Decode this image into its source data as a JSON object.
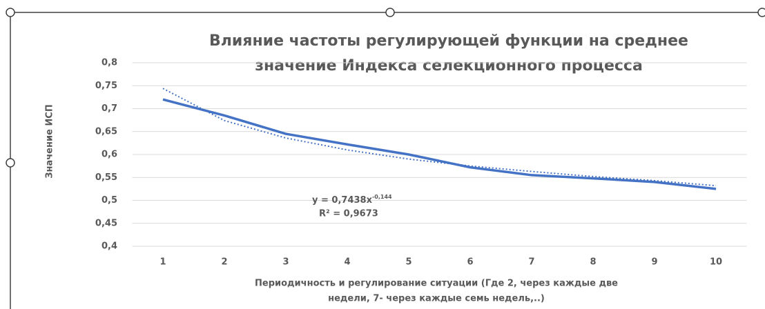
{
  "chart_data": {
    "type": "line",
    "title": [
      "Влияние частоты регулирующей функции на среднее",
      "значение  Индекса селекционного  процесса"
    ],
    "y_label": "Значение ИСП",
    "x_label": [
      "Периодичность и регулирование ситуации (Где 2, через каждые две",
      "недели, 7- через каждые семь недель,..)"
    ],
    "categories": [
      "1",
      "2",
      "3",
      "4",
      "5",
      "6",
      "7",
      "8",
      "9",
      "10"
    ],
    "values": [
      0.72,
      0.685,
      0.645,
      0.622,
      0.6,
      0.572,
      0.555,
      0.548,
      0.54,
      0.525
    ],
    "color": "#4472c4",
    "trendline": {
      "values": [
        0.744,
        0.674,
        0.636,
        0.61,
        0.59,
        0.575,
        0.563,
        0.552,
        0.543,
        0.532
      ],
      "color": "#4472c4",
      "dashed": true
    },
    "equation": "y = 0,7438x",
    "equation_exponent": "-0,144",
    "r_squared": "R² = 0,9673",
    "ylim": [
      0.4,
      0.8
    ],
    "yticks": [
      {
        "value": 0.4,
        "label": "0,4"
      },
      {
        "value": 0.45,
        "label": "0,45"
      },
      {
        "value": 0.5,
        "label": "0,5"
      },
      {
        "value": 0.55,
        "label": "0,55"
      },
      {
        "value": 0.6,
        "label": "0,6"
      },
      {
        "value": 0.65,
        "label": "0,65"
      },
      {
        "value": 0.7,
        "label": "0,7"
      },
      {
        "value": 0.75,
        "label": "0,75"
      },
      {
        "value": 0.8,
        "label": "0,8"
      }
    ],
    "grid": true
  }
}
